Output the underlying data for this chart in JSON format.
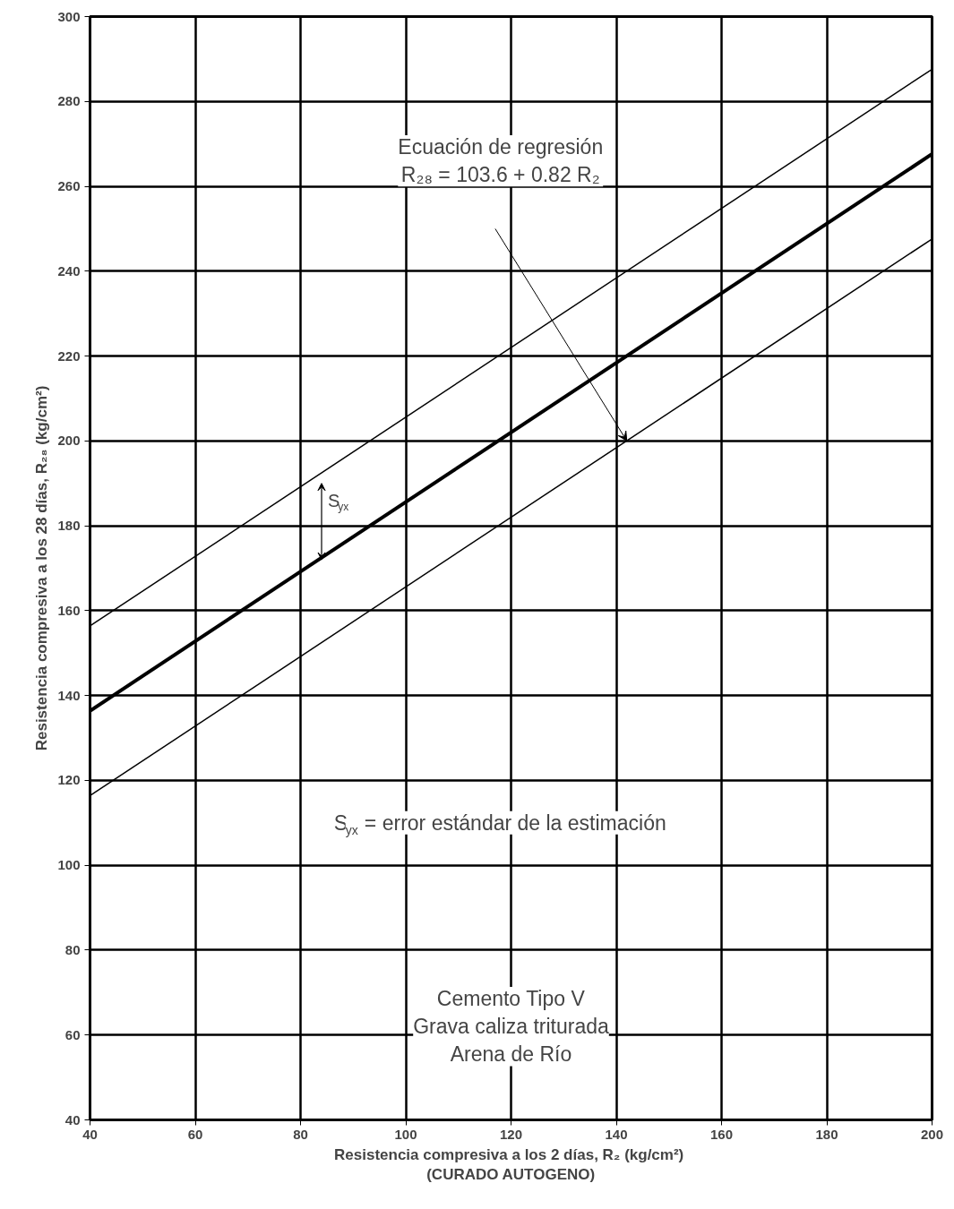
{
  "chart_data": {
    "type": "line",
    "xlabel": "Resistencia compresiva a los 2 días, R₂  (kg/cm²)\n(CURADO AUTOGENO)",
    "ylabel": "Resistencia compresiva a los 28 días, R₂₈ (kg/cm²)",
    "series": [
      {
        "color": "#000000",
        "values": [
          156.4,
          287.6
        ]
      },
      {
        "color": "#000000",
        "values": [
          136.4,
          267.6
        ]
      },
      {
        "color": "#000000",
        "values": [
          116.4,
          247.6
        ]
      }
    ],
    "x": [
      40,
      200
    ],
    "annotations": [
      "Ecuación de regresión\nR₂₈ = 103.6 + 0.82 R₂",
      "S$_{yx}$",
      "S$_{yx}$ = error estándar de la estimación",
      "Cemento Tipo V\nGrava caliza triturada\nArena de Río"
    ],
    "xlim": [
      40,
      200
    ],
    "ylim": [
      40,
      300
    ],
    "xticks": [
      40,
      60,
      80,
      100,
      120,
      140,
      160,
      180,
      200
    ],
    "yticks": [
      40,
      60,
      80,
      100,
      120,
      140,
      160,
      180,
      200,
      220,
      240,
      260,
      280,
      300
    ],
    "grid": true,
    "marker": "none",
    "line_style": "solid"
  }
}
